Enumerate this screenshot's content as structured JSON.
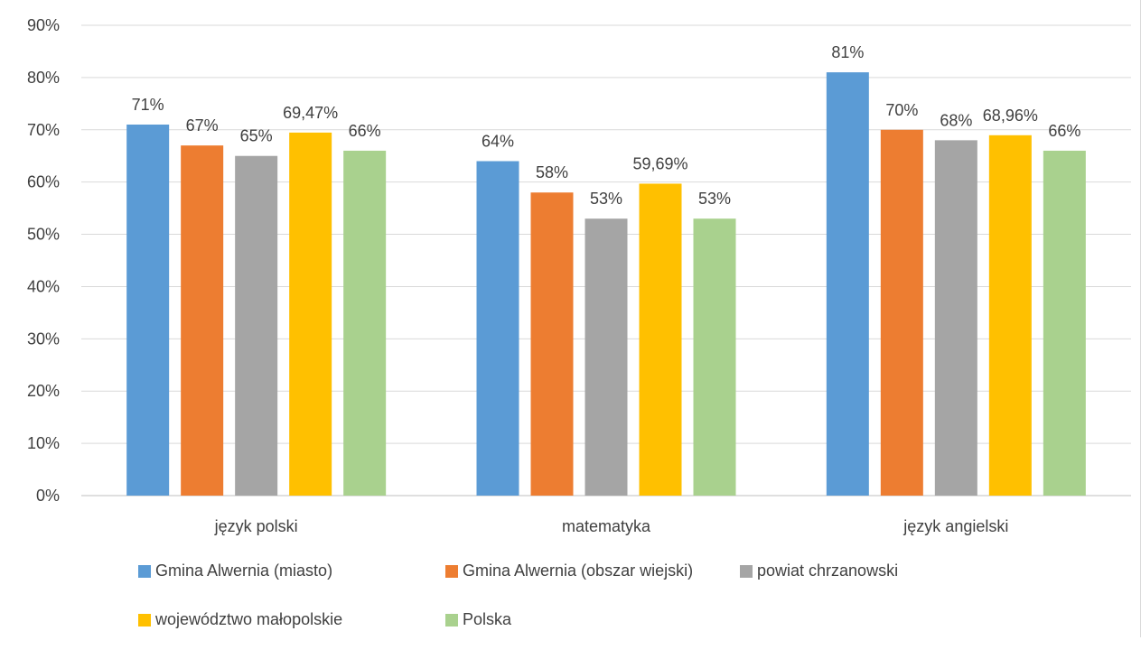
{
  "chart_data": {
    "type": "bar",
    "categories": [
      "język polski",
      "matematyka",
      "język angielski"
    ],
    "series": [
      {
        "name": "Gmina Alwernia (miasto)",
        "color": "#5B9BD5",
        "values": [
          71,
          64,
          81
        ],
        "labels": [
          "71%",
          "64%",
          "81%"
        ]
      },
      {
        "name": "Gmina Alwernia (obszar wiejski)",
        "color": "#ED7D31",
        "values": [
          67,
          58,
          70
        ],
        "labels": [
          "67%",
          "58%",
          "70%"
        ]
      },
      {
        "name": "powiat chrzanowski",
        "color": "#A5A5A5",
        "values": [
          65,
          53,
          68
        ],
        "labels": [
          "65%",
          "53%",
          "68%"
        ]
      },
      {
        "name": "województwo małopolskie",
        "color": "#FFC000",
        "values": [
          69.47,
          59.69,
          68.96
        ],
        "labels": [
          "69,47%",
          "59,69%",
          "68,96%"
        ]
      },
      {
        "name": "Polska",
        "color": "#A9D18E",
        "values": [
          66,
          53,
          66
        ],
        "labels": [
          "66%",
          "53%",
          "66%"
        ]
      }
    ],
    "ylim": [
      0,
      90
    ],
    "yticks": [
      "0%",
      "10%",
      "20%",
      "30%",
      "40%",
      "50%",
      "60%",
      "70%",
      "80%",
      "90%"
    ],
    "grid": true,
    "legend_position": "bottom"
  }
}
